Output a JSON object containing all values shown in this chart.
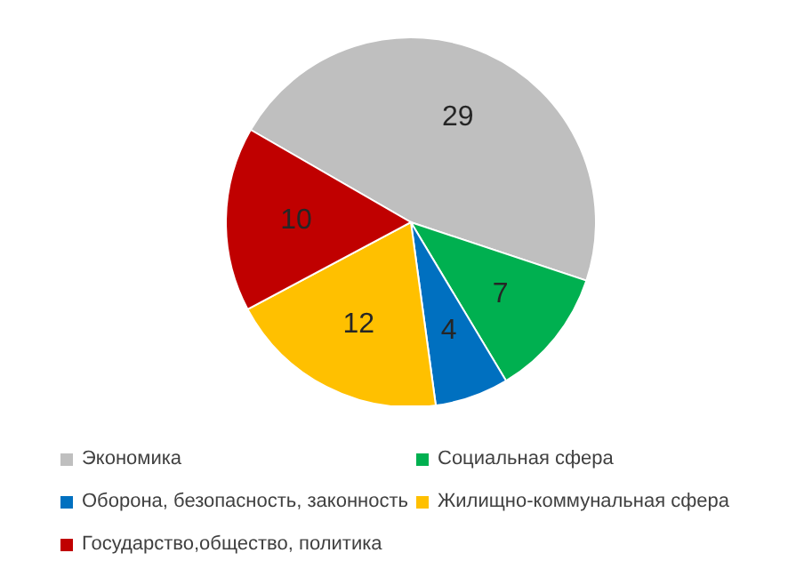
{
  "chart_data": {
    "type": "pie",
    "categories": [
      "Экономика",
      "Социальная сфера",
      "Оборона, безопасность, законность",
      "Жилищно-коммунальная сфера",
      "Государство,общество, политика"
    ],
    "values": [
      29,
      7,
      4,
      12,
      10
    ],
    "colors": [
      "#bfbfbf",
      "#00b050",
      "#0070c0",
      "#ffc000",
      "#c00000"
    ],
    "data_labels": true,
    "legend": "bottom"
  }
}
